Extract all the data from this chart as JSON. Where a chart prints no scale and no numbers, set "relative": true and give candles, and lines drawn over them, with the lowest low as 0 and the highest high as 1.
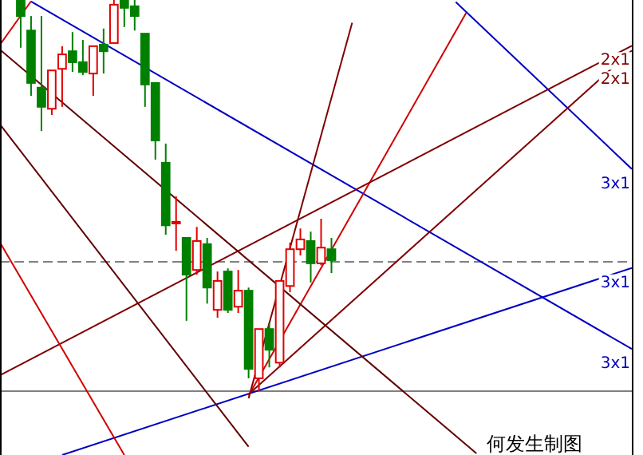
{
  "chart_data": {
    "type": "candlestick",
    "relative": true,
    "categories": [
      null,
      null,
      null,
      null,
      null,
      null,
      null,
      null,
      null,
      null,
      null,
      null,
      null,
      null,
      null,
      null,
      null,
      null,
      null,
      null,
      null,
      null,
      null,
      null,
      null,
      null,
      null,
      null,
      null,
      null,
      null,
      null,
      null,
      null,
      null,
      null,
      null,
      null,
      null,
      null,
      null,
      null,
      null,
      null,
      null,
      null,
      null,
      null,
      null,
      null,
      null,
      null,
      null,
      null,
      null,
      null,
      null,
      null,
      null,
      null,
      null,
      null
    ],
    "ohlc": [
      null,
      null,
      [
        1,
        1,
        0.878,
        0.959
      ],
      [
        0.922,
        0.959,
        0.755,
        0.788
      ],
      [
        0.776,
        0.959,
        0.665,
        0.727
      ],
      [
        0.722,
        0.82,
        0.706,
        0.82
      ],
      [
        0.824,
        0.882,
        0.727,
        0.861
      ],
      [
        0.869,
        0.918,
        0.816,
        0.841
      ],
      [
        0.841,
        0.898,
        0.808,
        0.816
      ],
      [
        0.812,
        0.882,
        0.755,
        0.882
      ],
      [
        0.886,
        0.927,
        0.812,
        0.869
      ],
      [
        0.89,
        1,
        0.89,
        0.988
      ],
      [
        1,
        1,
        0.931,
        0.98
      ],
      [
        0.984,
        1,
        0.922,
        0.959
      ],
      [
        0.914,
        0.914,
        0.727,
        0.784
      ],
      [
        0.788,
        0.788,
        0.592,
        0.641
      ],
      [
        0.584,
        0.633,
        0.4,
        0.424
      ],
      [
        0.429,
        0.498,
        0.359,
        0.433
      ],
      [
        0.392,
        0.392,
        0.18,
        0.298
      ],
      [
        0.31,
        0.42,
        0.298,
        0.384
      ],
      [
        0.376,
        0.392,
        0.224,
        0.265
      ],
      [
        0.208,
        0.306,
        0.188,
        0.282
      ],
      [
        0.306,
        0.314,
        0.2,
        0.208
      ],
      [
        0.216,
        0.31,
        0.2,
        0.257
      ],
      [
        0.257,
        0.265,
        0.033,
        0.057
      ],
      [
        0.033,
        0.159,
        0,
        0.159
      ],
      [
        0.159,
        0.176,
        0.061,
        0.106
      ],
      [
        0.073,
        0.282,
        0.061,
        0.282
      ],
      [
        0.269,
        0.38,
        0.253,
        0.363
      ],
      [
        0.363,
        0.416,
        0.347,
        0.388
      ],
      [
        0.384,
        0.408,
        0.278,
        0.327
      ],
      [
        0.327,
        0.441,
        0.322,
        0.367
      ],
      [
        0.363,
        0.392,
        0.302,
        0.335
      ],
      null,
      null,
      null,
      null,
      null,
      null,
      null,
      null,
      null,
      null,
      null,
      null,
      null,
      null,
      null,
      null,
      null,
      null,
      null,
      null,
      null,
      null,
      null,
      null,
      null,
      null,
      null,
      null,
      null
    ],
    "colors": [
      null,
      null,
      "#008000",
      "#008000",
      "#008000",
      "#e00000",
      "#e00000",
      "#008000",
      "#008000",
      "#e00000",
      "#008000",
      "#e00000",
      "#008000",
      "#008000",
      "#008000",
      "#008000",
      "#008000",
      "#e00000",
      "#008000",
      "#e00000",
      "#008000",
      "#e00000",
      "#008000",
      "#e00000",
      "#008000",
      "#e00000",
      "#008000",
      "#e00000",
      "#e00000",
      "#e00000",
      "#008000",
      "#e00000",
      "#008000",
      null,
      null,
      null,
      null,
      null,
      null,
      null,
      null,
      null,
      null,
      null,
      null,
      null,
      null,
      null,
      null,
      null,
      null,
      null,
      null,
      null,
      null,
      null,
      null,
      null,
      null,
      null,
      null,
      null
    ],
    "series": [
      {
        "type": "line",
        "name": "3x1",
        "color": "#0000c0",
        "values": [
          null,
          null,
          null,
          0.996,
          null,
          null,
          null,
          null,
          null,
          null,
          null,
          null,
          null,
          null,
          null,
          null,
          null,
          null,
          null,
          null,
          null,
          null,
          null,
          null,
          null,
          null,
          null,
          null,
          null,
          null,
          null,
          null,
          null,
          null,
          null,
          null,
          null,
          null,
          null,
          null,
          null,
          null,
          null,
          null,
          null,
          null,
          null,
          null,
          null,
          null,
          null,
          null,
          null,
          null,
          null,
          null,
          null,
          null,
          null,
          null,
          null,
          0.108
        ]
      },
      {
        "type": "line",
        "name": "3x1",
        "color": "#0000c0",
        "values": [
          null,
          null,
          null,
          null,
          null,
          null,
          null,
          null,
          null,
          null,
          null,
          null,
          null,
          null,
          null,
          null,
          null,
          null,
          null,
          null,
          null,
          null,
          null,
          null,
          null,
          null,
          null,
          null,
          null,
          null,
          null,
          null,
          null,
          null,
          null,
          null,
          null,
          null,
          null,
          null,
          null,
          null,
          null,
          null,
          0.995,
          null,
          null,
          null,
          null,
          null,
          null,
          null,
          null,
          null,
          null,
          null,
          null,
          null,
          null,
          null,
          null,
          0.568
        ]
      },
      {
        "type": "line",
        "name": "3x1",
        "color": "#0000c0",
        "values": [
          null,
          null,
          null,
          null,
          null,
          null,
          -0.163,
          null,
          null,
          null,
          null,
          null,
          null,
          null,
          null,
          null,
          null,
          null,
          null,
          null,
          null,
          null,
          null,
          null,
          null,
          null,
          null,
          null,
          null,
          null,
          null,
          null,
          null,
          null,
          null,
          null,
          null,
          null,
          null,
          null,
          null,
          null,
          null,
          null,
          null,
          null,
          null,
          null,
          null,
          null,
          null,
          null,
          null,
          null,
          null,
          null,
          null,
          null,
          null,
          null,
          null,
          0.315
        ]
      },
      {
        "type": "line",
        "color": "#800000",
        "values": [
          null,
          null,
          null,
          null,
          null,
          null,
          null,
          null,
          null,
          null,
          null,
          null,
          null,
          null,
          null,
          null,
          null,
          null,
          null,
          null,
          null,
          null,
          null,
          null,
          -0.018,
          null,
          null,
          null,
          null,
          null,
          null,
          null,
          null,
          null,
          0.942,
          null,
          null,
          null,
          null,
          null,
          null,
          null,
          null,
          null,
          null,
          null,
          null,
          null,
          null,
          null,
          null,
          null,
          null,
          null,
          null,
          null,
          null,
          null,
          null,
          null,
          null,
          null
        ]
      },
      {
        "type": "line",
        "color": "#d00000",
        "values": [
          null,
          null,
          null,
          null,
          null,
          null,
          null,
          null,
          null,
          null,
          null,
          null,
          null,
          null,
          null,
          null,
          null,
          null,
          null,
          null,
          null,
          null,
          null,
          null,
          -0.011,
          null,
          null,
          null,
          null,
          null,
          null,
          null,
          null,
          null,
          null,
          null,
          null,
          null,
          null,
          null,
          null,
          null,
          null,
          null,
          null,
          0.967,
          null,
          null,
          null,
          null,
          null,
          null,
          null,
          null,
          null,
          null,
          null,
          null,
          null,
          null,
          null,
          null
        ]
      },
      {
        "type": "line",
        "name": "2x1",
        "color": "#800000",
        "values": [
          null,
          null,
          null,
          null,
          null,
          null,
          null,
          null,
          null,
          null,
          null,
          null,
          null,
          null,
          null,
          null,
          null,
          null,
          null,
          null,
          null,
          null,
          null,
          null,
          -0.008,
          null,
          null,
          null,
          null,
          null,
          null,
          null,
          null,
          null,
          null,
          null,
          null,
          null,
          null,
          null,
          null,
          null,
          null,
          null,
          null,
          null,
          null,
          null,
          null,
          null,
          null,
          null,
          null,
          null,
          null,
          null,
          null,
          null,
          null,
          null,
          null,
          0.871
        ]
      },
      {
        "type": "line",
        "name": "2x1",
        "color": "#800000",
        "values": [
          0.041,
          null,
          null,
          null,
          null,
          null,
          null,
          null,
          null,
          null,
          null,
          null,
          null,
          null,
          null,
          null,
          null,
          null,
          null,
          null,
          null,
          null,
          null,
          null,
          null,
          null,
          null,
          null,
          null,
          null,
          null,
          null,
          null,
          null,
          null,
          null,
          null,
          null,
          null,
          null,
          null,
          null,
          null,
          null,
          null,
          null,
          null,
          null,
          null,
          null,
          null,
          null,
          null,
          null,
          null,
          null,
          null,
          null,
          null,
          null,
          null,
          0.883
        ]
      },
      {
        "type": "line",
        "color": "#d00000",
        "values": [
          0.38,
          null,
          null,
          null,
          null,
          null,
          null,
          null,
          null,
          null,
          null,
          null,
          -0.163,
          null,
          null,
          null,
          null,
          null,
          null,
          null,
          null,
          null,
          null,
          null,
          null,
          null,
          null,
          null,
          null,
          null,
          null,
          null,
          null,
          null,
          null,
          null,
          null,
          null,
          null,
          null,
          null,
          null,
          null,
          null,
          null,
          null,
          null,
          null,
          null,
          null,
          null,
          null,
          null,
          null,
          null,
          null,
          null,
          null,
          null,
          null,
          null,
          null
        ]
      },
      {
        "type": "line",
        "color": "#d00000",
        "values": [
          0.886,
          null,
          null,
          0.997,
          null,
          null,
          null,
          null,
          null,
          null,
          null,
          null,
          null,
          null,
          null,
          null,
          null,
          null,
          null,
          null,
          null,
          null,
          null,
          null,
          null,
          null,
          null,
          null,
          null,
          null,
          null,
          null,
          null,
          null,
          null,
          null,
          null,
          null,
          null,
          null,
          null,
          null,
          null,
          null,
          null,
          null,
          null,
          null,
          null,
          null,
          null,
          null,
          null,
          null,
          null,
          null,
          null,
          null,
          null,
          null,
          null,
          null
        ]
      },
      {
        "type": "line",
        "color": "#600000",
        "values": [
          0.873,
          null,
          null,
          null,
          null,
          null,
          null,
          null,
          null,
          null,
          null,
          null,
          null,
          null,
          null,
          null,
          null,
          null,
          null,
          null,
          null,
          null,
          null,
          null,
          null,
          null,
          null,
          null,
          null,
          null,
          null,
          null,
          null,
          null,
          null,
          null,
          null,
          null,
          null,
          null,
          null,
          null,
          null,
          null,
          null,
          null,
          -0.159,
          null,
          null,
          null,
          null,
          null,
          null,
          null,
          null,
          null,
          null,
          null,
          null,
          null,
          null,
          null
        ]
      },
      {
        "type": "line",
        "color": "#600000",
        "values": [
          0.682,
          null,
          null,
          null,
          null,
          null,
          null,
          null,
          null,
          null,
          null,
          null,
          null,
          null,
          null,
          null,
          null,
          null,
          null,
          null,
          null,
          null,
          null,
          null,
          -0.142,
          null,
          null,
          null,
          null,
          null,
          null,
          null,
          null,
          null,
          null,
          null,
          null,
          null,
          null,
          null,
          null,
          null,
          null,
          null,
          null,
          null,
          null,
          null,
          null,
          null,
          null,
          null,
          null,
          null,
          null,
          null,
          null,
          null,
          null,
          null,
          null,
          null
        ]
      }
    ],
    "ref_lines": [
      {
        "axis": "y",
        "value": 0,
        "color": "#808080",
        "line_style": "solid"
      },
      {
        "axis": "y",
        "value": 0.331,
        "color": "#808080",
        "line_style": "dashed"
      }
    ],
    "annotations": [
      "何发生制图"
    ]
  }
}
